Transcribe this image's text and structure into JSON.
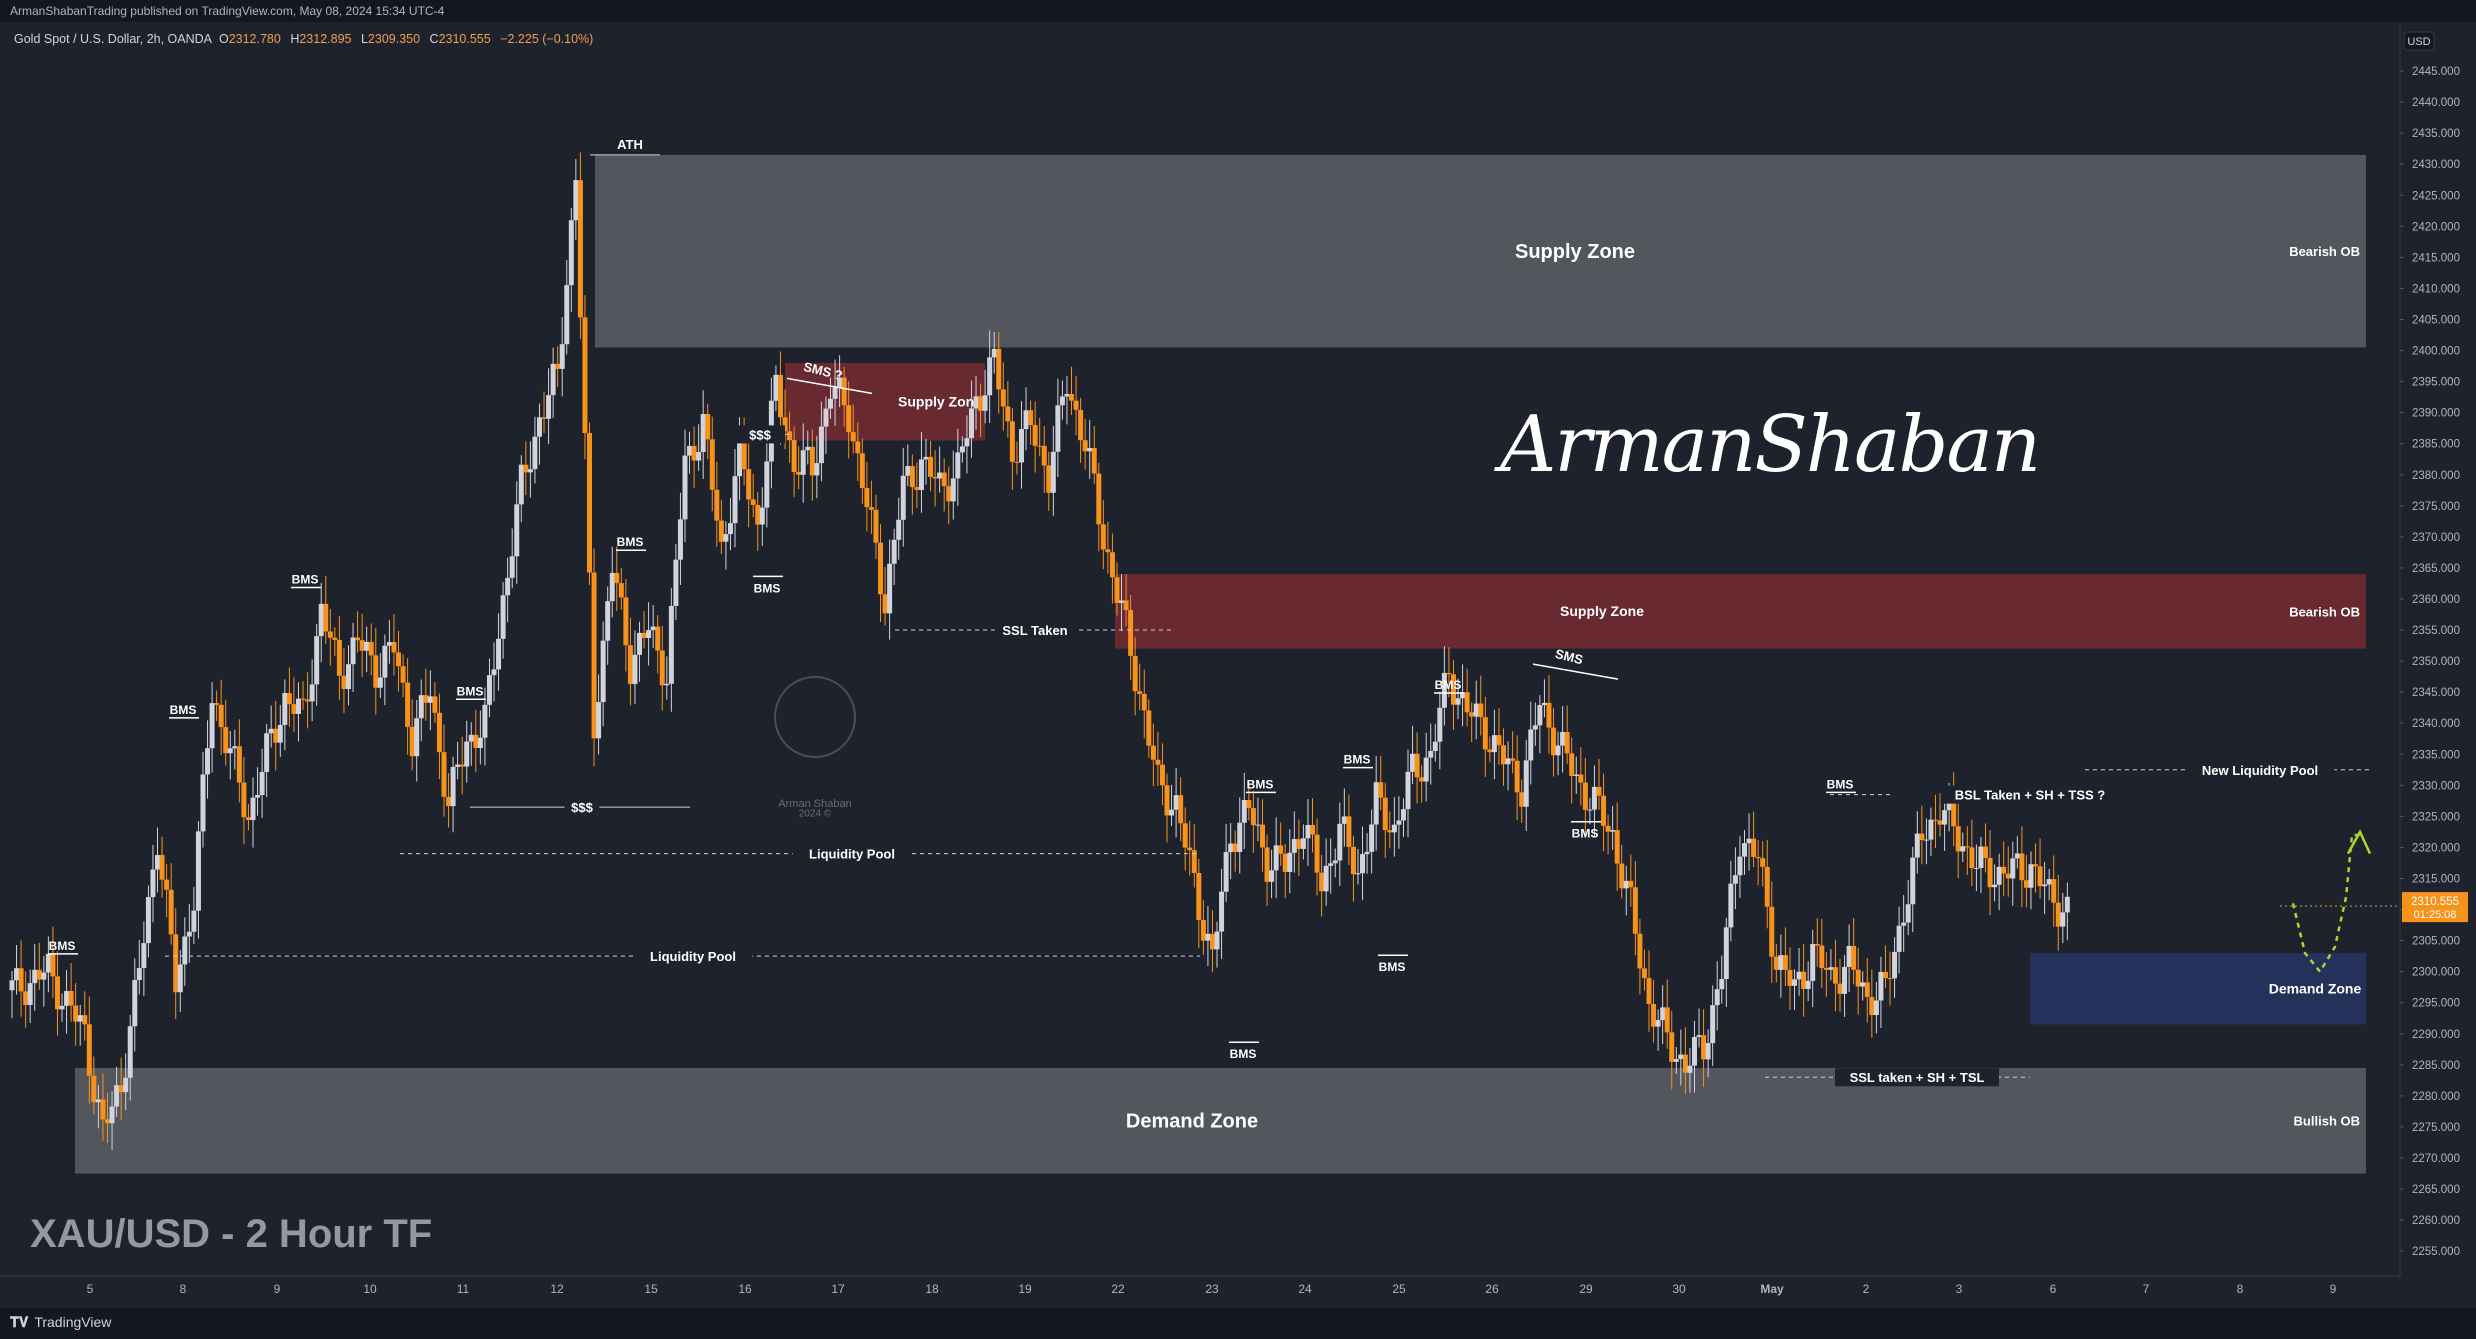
{
  "header": {
    "published": "ArmanShabanTrading published on TradingView.com, May 08, 2024 15:34 UTC-4"
  },
  "symbol_bar": {
    "symbol": "Gold Spot / U.S. Dollar, 2h, OANDA",
    "o_label": "O",
    "o": "2312.780",
    "h_label": "H",
    "h": "2312.895",
    "l_label": "L",
    "l": "2309.350",
    "c_label": "C",
    "c": "2310.555",
    "change": "−2.225 (−0.10%)"
  },
  "chart_title": "XAU/USD - 2 Hour TF",
  "signature": "ArmanShaban",
  "watermark": {
    "line1": "Arman Shaban",
    "line2": "2024 ©"
  },
  "footer": {
    "brand": "TradingView"
  },
  "currency": "USD",
  "current_price": {
    "value": "2310.555",
    "timer": "01:25:08"
  },
  "colors": {
    "background": "#1e222d",
    "up_candle": "#d1d4dc",
    "down_candle": "#f7931a",
    "supply_zone": "#6d2a31",
    "grey_zone": "#5d5f66",
    "demand_zone": "#24335e",
    "projection": "#a8d82e"
  },
  "chart_data": {
    "type": "candlestick",
    "title": "XAU/USD - 2 Hour TF",
    "ylim": [
      2251,
      2450
    ],
    "yticks": [
      "2445.000",
      "2440.000",
      "2435.000",
      "2430.000",
      "2425.000",
      "2420.000",
      "2415.000",
      "2410.000",
      "2405.000",
      "2400.000",
      "2395.000",
      "2390.000",
      "2385.000",
      "2380.000",
      "2375.000",
      "2370.000",
      "2365.000",
      "2360.000",
      "2355.000",
      "2350.000",
      "2345.000",
      "2340.000",
      "2335.000",
      "2330.000",
      "2325.000",
      "2320.000",
      "2315.000",
      "2310.000",
      "2305.000",
      "2300.000",
      "2295.000",
      "2290.000",
      "2285.000",
      "2280.000",
      "2275.000",
      "2270.000",
      "2265.000",
      "2260.000",
      "2255.000"
    ],
    "xticks": [
      "5",
      "8",
      "9",
      "10",
      "11",
      "12",
      "15",
      "16",
      "17",
      "18",
      "19",
      "22",
      "23",
      "24",
      "25",
      "26",
      "29",
      "30",
      "May",
      "2",
      "3",
      "6",
      "7",
      "8",
      "9"
    ],
    "price_path": [
      [
        0,
        2297
      ],
      [
        2,
        2300
      ],
      [
        4,
        2290
      ],
      [
        5,
        2274
      ],
      [
        6,
        2282
      ],
      [
        7,
        2300
      ],
      [
        8,
        2322
      ],
      [
        9,
        2298
      ],
      [
        10,
        2312
      ],
      [
        11,
        2345
      ],
      [
        12,
        2335
      ],
      [
        13,
        2325
      ],
      [
        14,
        2335
      ],
      [
        15,
        2344
      ],
      [
        16,
        2341
      ],
      [
        17,
        2358
      ],
      [
        18,
        2348
      ],
      [
        19,
        2353
      ],
      [
        20,
        2349
      ],
      [
        21,
        2352
      ],
      [
        22,
        2338
      ],
      [
        23,
        2345
      ],
      [
        24,
        2327
      ],
      [
        25,
        2337
      ],
      [
        26,
        2340
      ],
      [
        27,
        2360
      ],
      [
        28,
        2378
      ],
      [
        29,
        2389
      ],
      [
        30,
        2396
      ],
      [
        31,
        2428
      ],
      [
        32,
        2340
      ],
      [
        33,
        2365
      ],
      [
        34,
        2350
      ],
      [
        35,
        2355
      ],
      [
        36,
        2348
      ],
      [
        37,
        2382
      ],
      [
        38,
        2388
      ],
      [
        39,
        2368
      ],
      [
        40,
        2383
      ],
      [
        41,
        2372
      ],
      [
        42,
        2394
      ],
      [
        43,
        2382
      ],
      [
        44,
        2381
      ],
      [
        45,
        2394
      ],
      [
        46,
        2390
      ],
      [
        47,
        2375
      ],
      [
        48,
        2360
      ],
      [
        49,
        2378
      ],
      [
        50,
        2382
      ],
      [
        51,
        2378
      ],
      [
        52,
        2381
      ],
      [
        53,
        2392
      ],
      [
        54,
        2398
      ],
      [
        55,
        2384
      ],
      [
        56,
        2388
      ],
      [
        57,
        2380
      ],
      [
        58,
        2395
      ],
      [
        59,
        2385
      ],
      [
        60,
        2370
      ],
      [
        61,
        2358
      ],
      [
        62,
        2345
      ],
      [
        63,
        2330
      ],
      [
        64,
        2327
      ],
      [
        65,
        2314
      ],
      [
        66,
        2302
      ],
      [
        67,
        2322
      ],
      [
        68,
        2326
      ],
      [
        69,
        2318
      ],
      [
        70,
        2317
      ],
      [
        71,
        2324
      ],
      [
        72,
        2314
      ],
      [
        73,
        2323
      ],
      [
        74,
        2316
      ],
      [
        75,
        2327
      ],
      [
        76,
        2323
      ],
      [
        77,
        2332
      ],
      [
        78,
        2335
      ],
      [
        79,
        2348
      ],
      [
        80,
        2342
      ],
      [
        81,
        2339
      ],
      [
        82,
        2334
      ],
      [
        83,
        2330
      ],
      [
        84,
        2343
      ],
      [
        85,
        2337
      ],
      [
        86,
        2331
      ],
      [
        87,
        2327
      ],
      [
        88,
        2322
      ],
      [
        89,
        2310
      ],
      [
        90,
        2295
      ],
      [
        91,
        2289
      ],
      [
        92,
        2285
      ],
      [
        93,
        2288
      ],
      [
        94,
        2300
      ],
      [
        95,
        2322
      ],
      [
        96,
        2318
      ],
      [
        97,
        2302
      ],
      [
        98,
        2297
      ],
      [
        99,
        2303
      ],
      [
        100,
        2299
      ],
      [
        101,
        2301
      ],
      [
        102,
        2296
      ],
      [
        103,
        2297
      ],
      [
        104,
        2310
      ],
      [
        105,
        2322
      ],
      [
        106,
        2326
      ],
      [
        107,
        2322
      ],
      [
        108,
        2317
      ],
      [
        109,
        2316
      ],
      [
        110,
        2316
      ],
      [
        111,
        2317
      ],
      [
        112,
        2312
      ],
      [
        113,
        2310
      ]
    ],
    "levels": [
      {
        "label": "ATH",
        "value": 2431.5
      },
      {
        "label": "$$$",
        "value": 2326.5
      },
      {
        "label": "$$$",
        "value": 2386.5
      },
      {
        "label": "Liquidity Pool",
        "value": 2319.0
      },
      {
        "label": "Liquidity Pool",
        "value": 2302.5
      },
      {
        "label": "SSL Taken",
        "value": 2355.0
      },
      {
        "label": "BSL Taken + SH + TSS ?",
        "value": 2328.5
      },
      {
        "label": "New Liquidity Pool",
        "value": 2332.5
      },
      {
        "label": "SSL taken + SH + TSL",
        "value": 2283.0
      }
    ],
    "zones": [
      {
        "label": "Supply Zone",
        "tag": "Bearish OB",
        "from": 2400.5,
        "to": 2431.5,
        "kind": "grey"
      },
      {
        "label": "Supply Zone",
        "tag": "",
        "from": 2385.5,
        "to": 2398.0,
        "kind": "supply"
      },
      {
        "label": "Supply Zone",
        "tag": "Bearish OB",
        "from": 2352.0,
        "to": 2364.0,
        "kind": "supply"
      },
      {
        "label": "Demand Zone",
        "tag": "Bullish OB",
        "from": 2267.5,
        "to": 2284.5,
        "kind": "grey"
      },
      {
        "label": "Demand Zone",
        "tag": "",
        "from": 2291.5,
        "to": 2303.0,
        "kind": "demand"
      }
    ],
    "markers": [
      "BMS",
      "BMS",
      "BMS",
      "BMS",
      "BMS",
      "BMS",
      "BMS",
      "BMS",
      "BMS",
      "BMS",
      "BMS",
      "BMS",
      "BMS",
      "BMS",
      "SMS ?",
      "SMS"
    ]
  }
}
